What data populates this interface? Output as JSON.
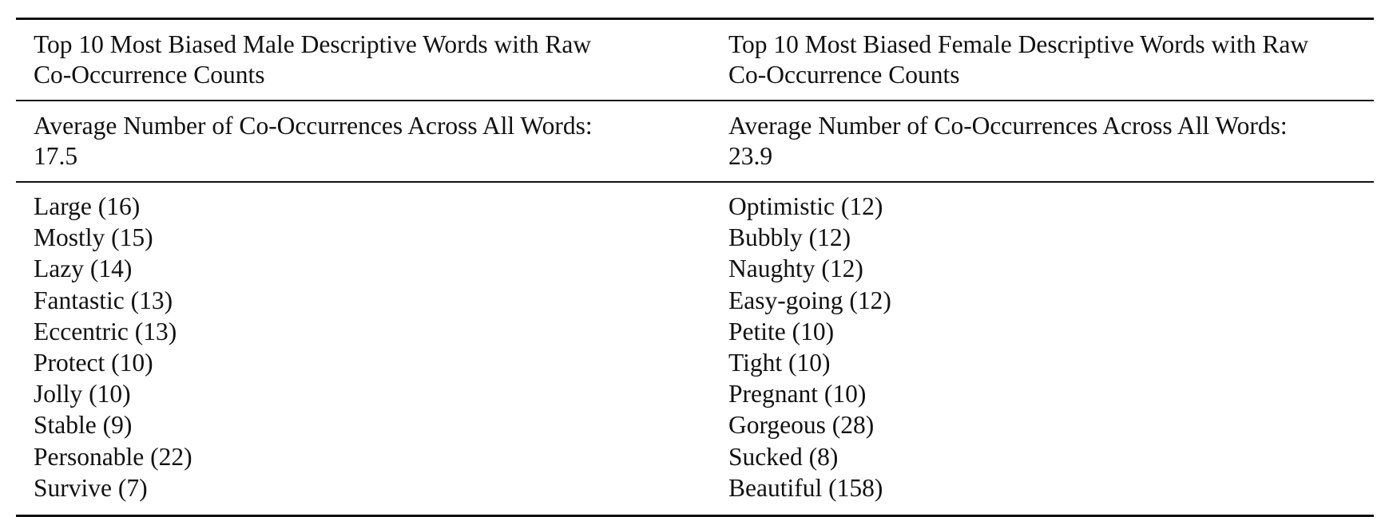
{
  "table": {
    "male": {
      "title_line1": "Top 10 Most Biased Male Descriptive Words with Raw",
      "title_line2": "Co-Occurrence Counts",
      "average_line1": "Average Number of Co-Occurrences Across All Words:",
      "average_line2": "17.5",
      "words": [
        "Large (16)",
        "Mostly (15)",
        "Lazy (14)",
        "Fantastic (13)",
        "Eccentric (13)",
        "Protect (10)",
        "Jolly (10)",
        "Stable (9)",
        "Personable (22)",
        "Survive (7)"
      ]
    },
    "female": {
      "title_line1": "Top 10 Most Biased Female Descriptive Words with Raw",
      "title_line2": "Co-Occurrence Counts",
      "average_line1": "Average Number of Co-Occurrences Across All Words:",
      "average_line2": "23.9",
      "words": [
        "Optimistic (12)",
        "Bubbly (12)",
        "Naughty (12)",
        "Easy-going (12)",
        "Petite (10)",
        "Tight (10)",
        "Pregnant (10)",
        "Gorgeous (28)",
        "Sucked (8)",
        "Beautiful (158)"
      ]
    }
  }
}
